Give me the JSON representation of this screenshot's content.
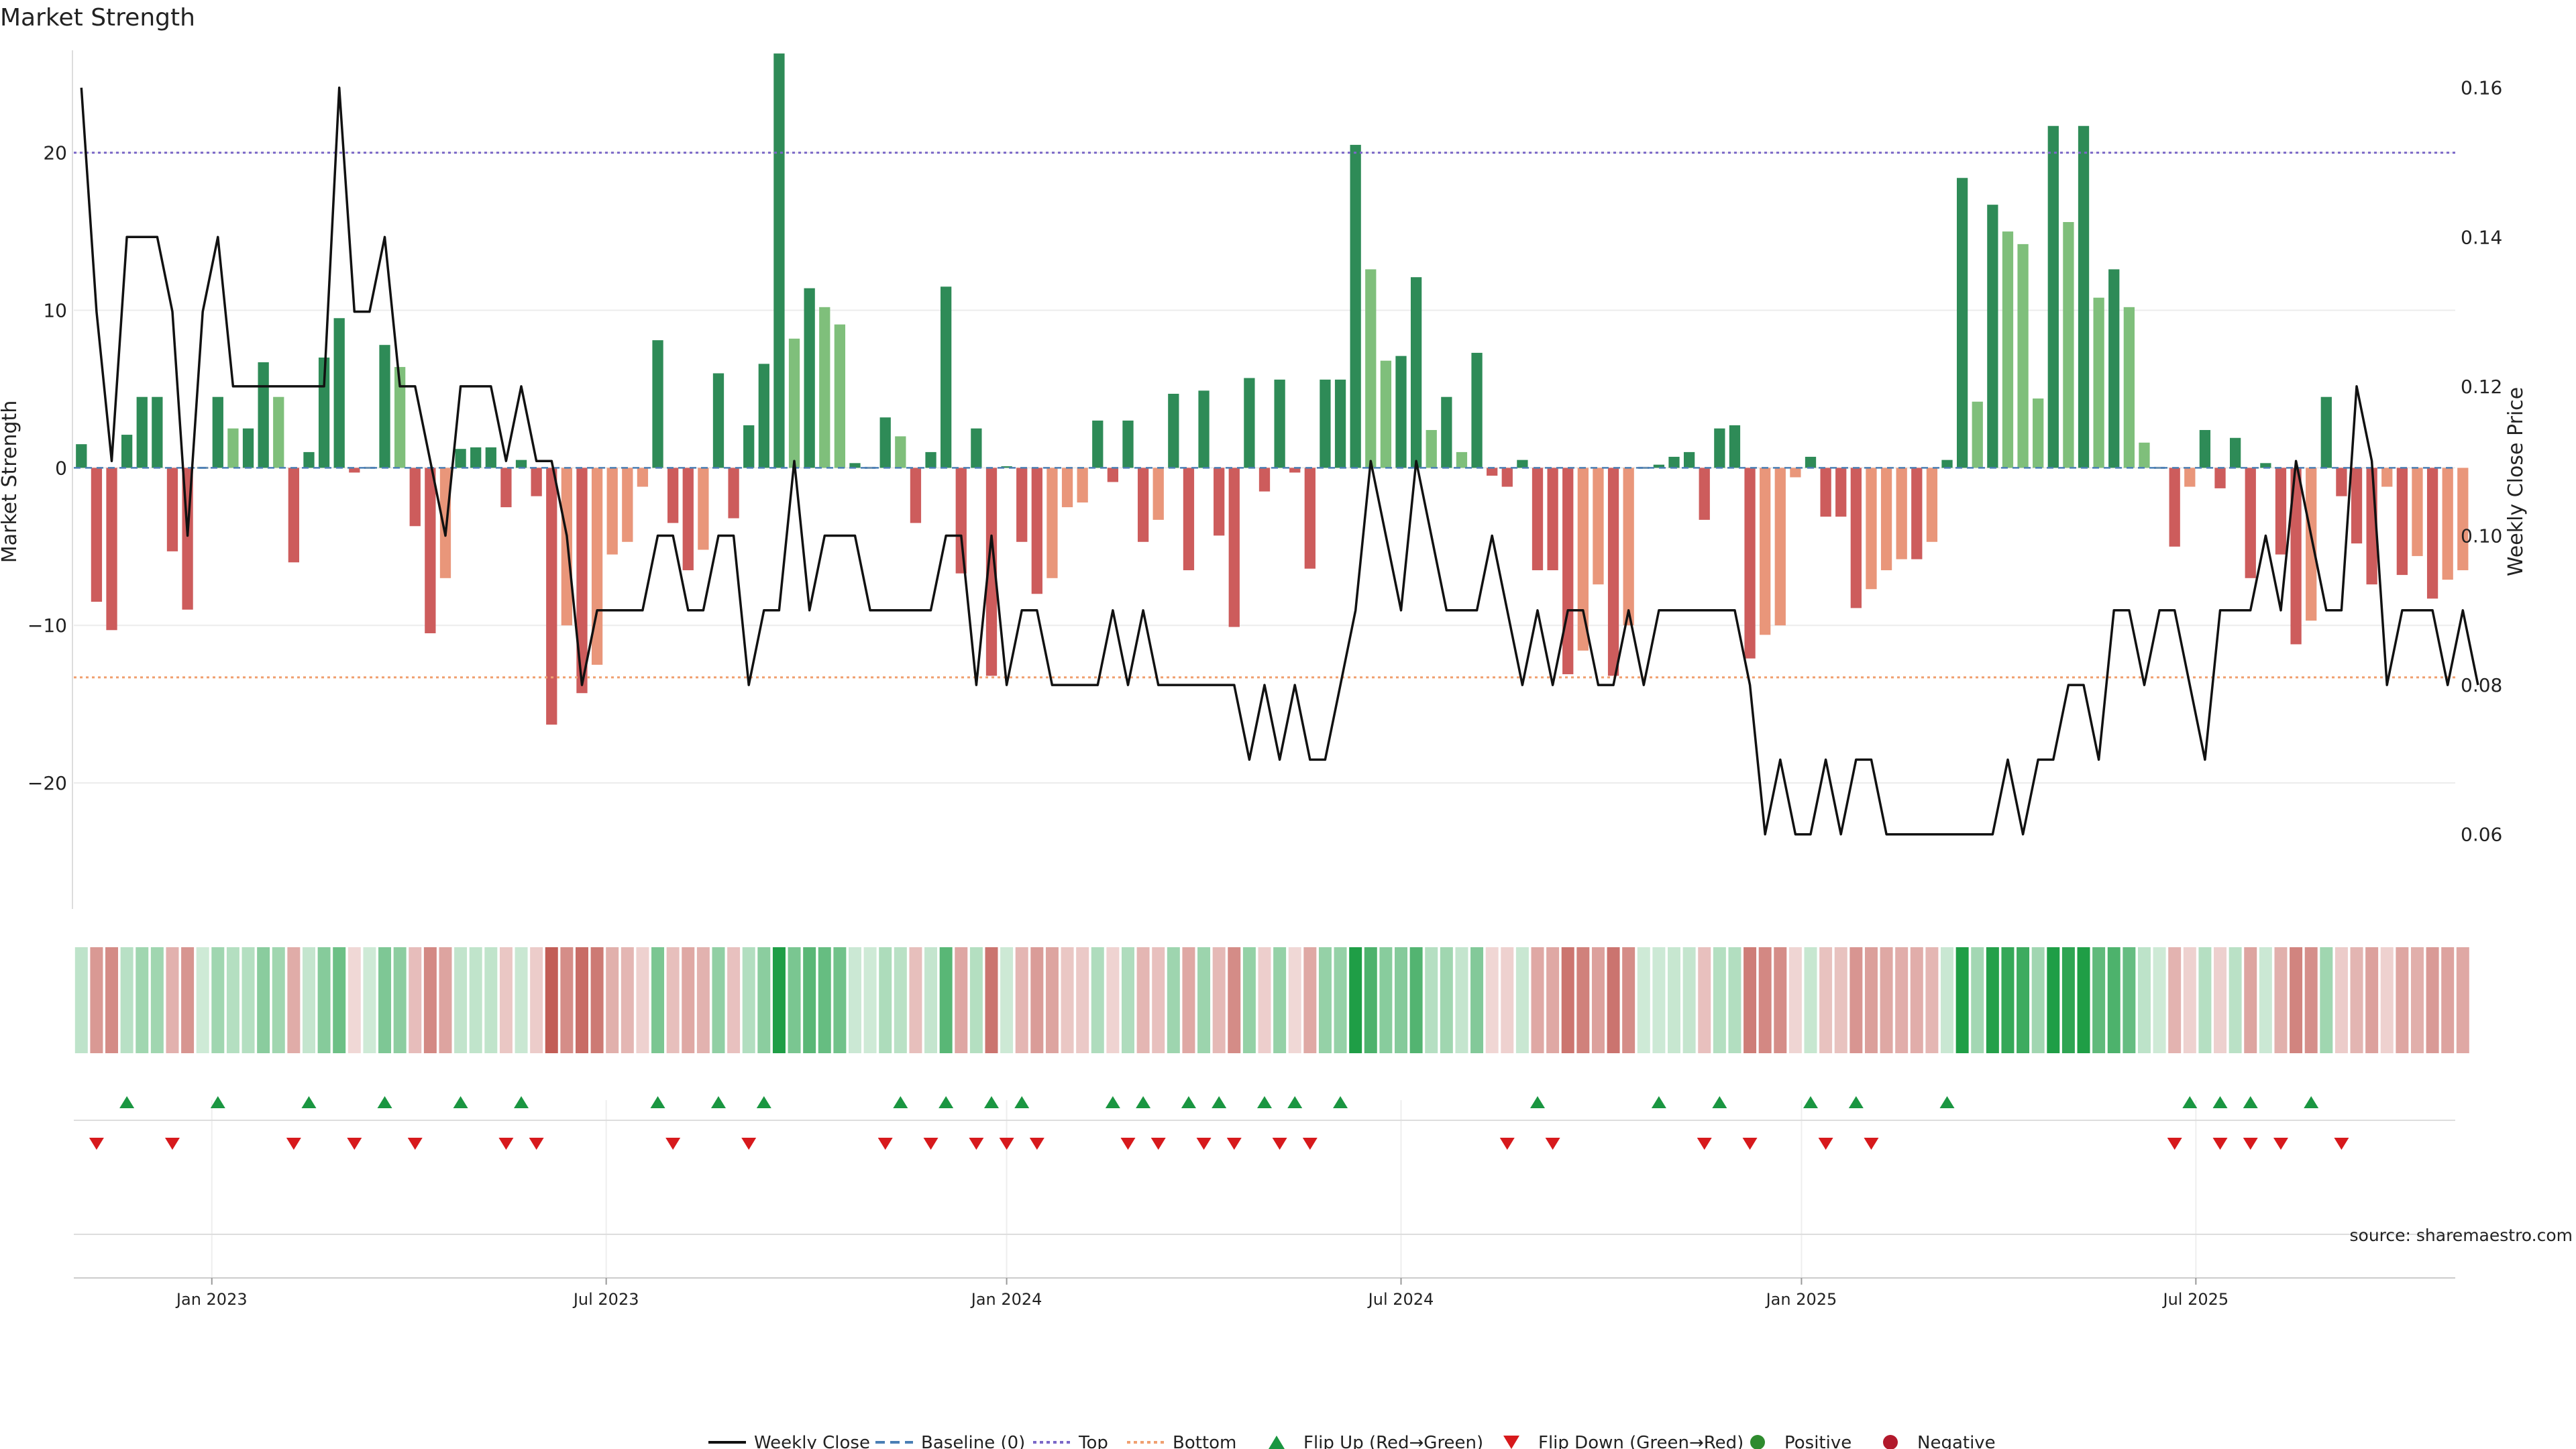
{
  "chart_data": {
    "type": "bar",
    "title": "Market Strength",
    "ylabel": "Market Strength",
    "y2label": "Weekly Close Price",
    "ylim": [
      -28,
      26.5
    ],
    "y2lim": [
      0.05,
      0.165
    ],
    "yticks": [
      -20,
      -10,
      0,
      10,
      20
    ],
    "y2ticks": [
      0.06,
      0.08,
      0.1,
      0.12,
      0.14,
      0.16
    ],
    "y2tick_labels": [
      "0.06",
      "0.08",
      "0.10",
      "0.12",
      "0.14",
      "0.16"
    ],
    "top_level": 20,
    "bottom_level": -13.3,
    "x_tick_labels": [
      "Jan 2023",
      "Jul 2023",
      "Jan 2024",
      "Jul 2024",
      "Jan 2025",
      "Jul 2025"
    ],
    "x_tick_index": [
      8.6,
      34.6,
      61.0,
      87.0,
      113.4,
      139.4
    ],
    "n_weeks": 157,
    "strength": [
      1.5,
      -8.5,
      -10.3,
      2.1,
      4.5,
      4.5,
      -5.3,
      -9.0,
      0,
      4.5,
      2.5,
      2.5,
      6.7,
      4.5,
      -6.0,
      1.0,
      7.0,
      9.5,
      -0.3,
      0,
      7.8,
      6.4,
      -3.7,
      -10.5,
      -7.0,
      1.2,
      1.3,
      1.3,
      -2.5,
      0.5,
      -1.8,
      -16.3,
      -10.0,
      -14.3,
      -12.5,
      -5.5,
      -4.7,
      -1.2,
      8.1,
      -3.5,
      -6.5,
      -5.2,
      6.0,
      -3.2,
      2.7,
      6.6,
      26.3,
      8.2,
      11.4,
      10.2,
      9.1,
      0.3,
      0,
      3.2,
      2.0,
      -3.5,
      1.0,
      11.5,
      -6.7,
      2.5,
      -13.2,
      0.1,
      -4.7,
      -8.0,
      -7.0,
      -2.5,
      -2.2,
      3.0,
      -0.9,
      3.0,
      -4.7,
      -3.3,
      4.7,
      -6.5,
      4.9,
      -4.3,
      -10.1,
      5.7,
      -1.5,
      5.6,
      -0.3,
      -6.4,
      5.6,
      5.6,
      20.5,
      12.6,
      6.8,
      7.1,
      12.1,
      2.4,
      4.5,
      1.0,
      7.3,
      -0.5,
      -1.2,
      0.5,
      -6.5,
      -6.5,
      -13.1,
      -11.6,
      -7.4,
      -13.2,
      -10.0,
      0,
      0.2,
      0.7,
      1.0,
      -3.3,
      2.5,
      2.7,
      -12.1,
      -10.6,
      -10.0,
      -0.6,
      0.7,
      -3.1,
      -3.1,
      -8.9,
      -7.7,
      -6.5,
      -5.8,
      -5.8,
      -4.7,
      0.5,
      18.4,
      4.2,
      16.7,
      15.0,
      14.2,
      4.4,
      21.7,
      15.6,
      21.7,
      10.8,
      12.6,
      10.2,
      1.6,
      0,
      -5.0,
      -1.2,
      2.4,
      -1.3,
      1.9,
      -7.0,
      0.3,
      -5.5,
      -11.2,
      -9.7,
      4.5,
      -1.8,
      -4.8,
      -7.4,
      -1.2,
      -6.8,
      -5.6,
      -8.3,
      -7.1,
      -6.5
    ],
    "price": [
      0.16,
      0.13,
      0.11,
      0.14,
      0.14,
      0.14,
      0.13,
      0.1,
      0.13,
      0.14,
      0.12,
      0.12,
      0.12,
      0.12,
      0.12,
      0.12,
      0.12,
      0.16,
      0.13,
      0.13,
      0.14,
      0.12,
      0.12,
      0.11,
      0.1,
      0.12,
      0.12,
      0.12,
      0.11,
      0.12,
      0.11,
      0.11,
      0.1,
      0.08,
      0.09,
      0.09,
      0.09,
      0.09,
      0.1,
      0.1,
      0.09,
      0.09,
      0.1,
      0.1,
      0.08,
      0.09,
      0.09,
      0.11,
      0.09,
      0.1,
      0.1,
      0.1,
      0.09,
      0.09,
      0.09,
      0.09,
      0.09,
      0.1,
      0.1,
      0.08,
      0.1,
      0.08,
      0.09,
      0.09,
      0.08,
      0.08,
      0.08,
      0.08,
      0.09,
      0.08,
      0.09,
      0.08,
      0.08,
      0.08,
      0.08,
      0.08,
      0.08,
      0.07,
      0.08,
      0.07,
      0.08,
      0.07,
      0.07,
      0.08,
      0.09,
      0.11,
      0.1,
      0.09,
      0.11,
      0.1,
      0.09,
      0.09,
      0.09,
      0.1,
      0.09,
      0.08,
      0.09,
      0.08,
      0.09,
      0.09,
      0.08,
      0.08,
      0.09,
      0.08,
      0.09,
      0.09,
      0.09,
      0.09,
      0.09,
      0.09,
      0.08,
      0.06,
      0.07,
      0.06,
      0.06,
      0.07,
      0.06,
      0.07,
      0.07,
      0.06,
      0.06,
      0.06,
      0.06,
      0.06,
      0.06,
      0.06,
      0.06,
      0.07,
      0.06,
      0.07,
      0.07,
      0.08,
      0.08,
      0.07,
      0.09,
      0.09,
      0.08,
      0.09,
      0.09,
      0.08,
      0.07,
      0.09,
      0.09,
      0.09,
      0.1,
      0.09,
      0.11,
      0.1,
      0.09,
      0.09,
      0.12,
      0.11,
      0.08,
      0.09,
      0.09,
      0.09,
      0.08,
      0.09,
      0.08
    ],
    "flips_up": [
      3,
      9,
      15,
      20,
      25,
      29,
      38,
      42,
      45,
      54,
      57,
      60,
      62,
      68,
      70,
      73,
      75,
      78,
      80,
      83,
      96,
      104,
      108,
      114,
      117,
      123,
      139,
      141,
      143,
      147
    ],
    "flips_down": [
      1,
      6,
      14,
      18,
      22,
      28,
      30,
      39,
      44,
      53,
      56,
      59,
      61,
      63,
      69,
      71,
      74,
      76,
      79,
      81,
      94,
      97,
      107,
      110,
      115,
      118,
      138,
      141,
      143,
      145,
      149
    ],
    "legend": [
      {
        "label": "Weekly Close",
        "kind": "line",
        "color": "#111111"
      },
      {
        "label": "Baseline (0)",
        "kind": "dash",
        "color": "#4a7fb5"
      },
      {
        "label": "Top",
        "kind": "dot",
        "color": "#7b68c8"
      },
      {
        "label": "Bottom",
        "kind": "dot",
        "color": "#f0a070"
      },
      {
        "label": "Flip Up (Red→Green)",
        "kind": "tri-up",
        "color": "#1a9641"
      },
      {
        "label": "Flip Down (Green→Red)",
        "kind": "tri-down",
        "color": "#d7191c"
      },
      {
        "label": "Positive",
        "kind": "circle",
        "color": "#2e8b2e"
      },
      {
        "label": "Negative",
        "kind": "circle",
        "color": "#b2182b"
      }
    ],
    "source": "source: sharemaestro.com"
  },
  "colors": {
    "pos_dark": "#2e8b57",
    "pos_light": "#7fbf7b",
    "neg_dark": "#cd5c5c",
    "neg_light": "#e9967a",
    "top_line": "#7b68c8",
    "bottom_line": "#f0a070",
    "baseline": "#4a7fb5",
    "price_line": "#111111"
  }
}
